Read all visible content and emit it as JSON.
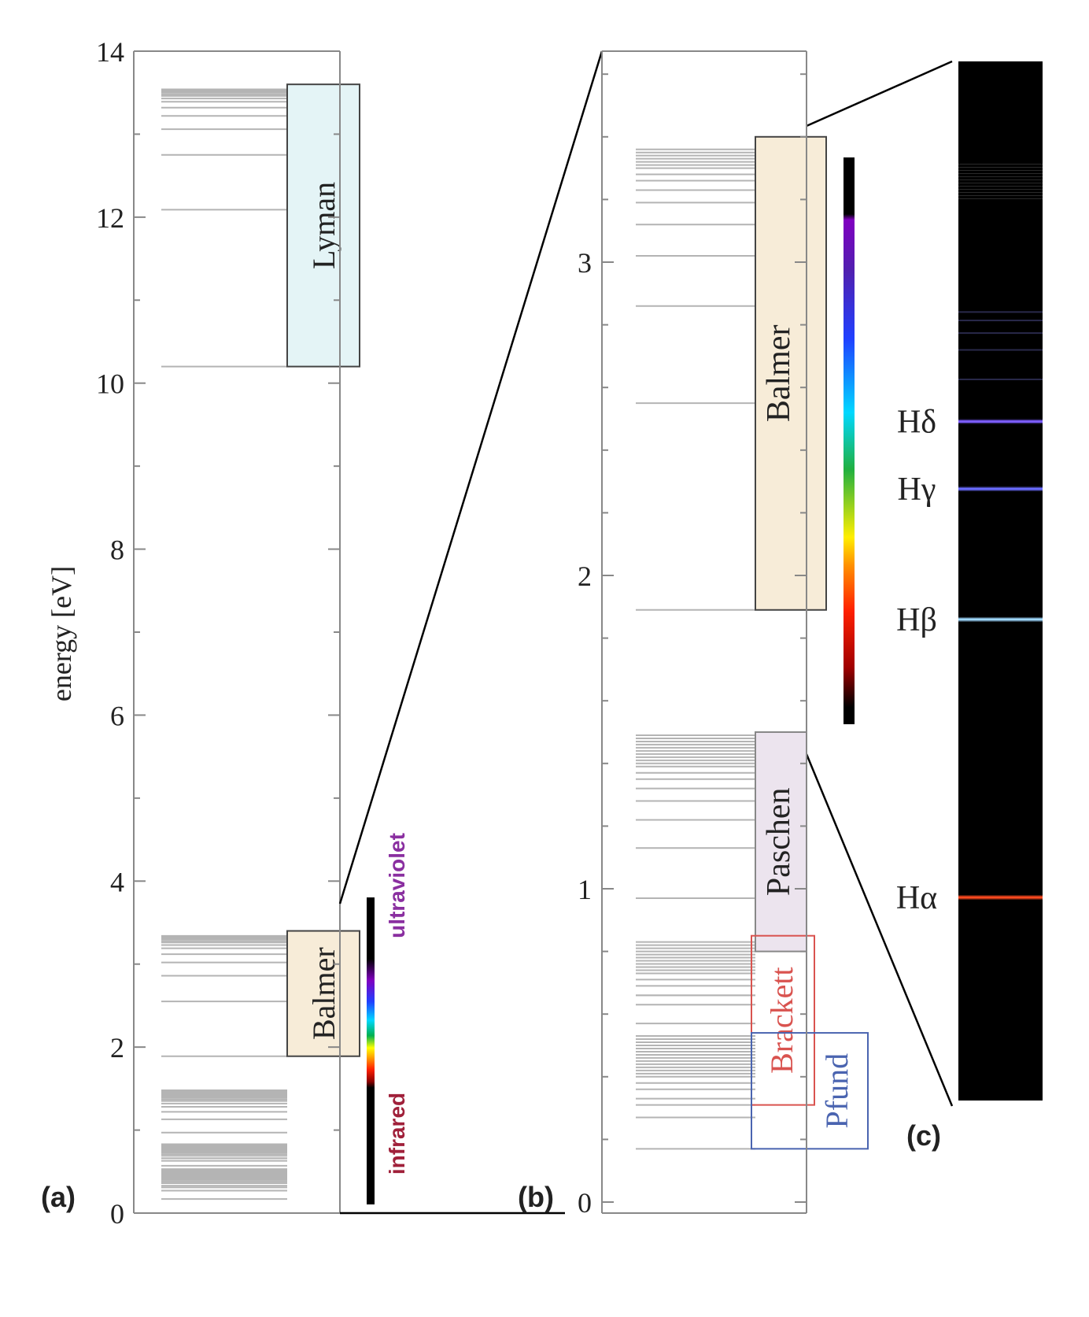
{
  "chart_data": [
    {
      "type": "energy-level-diagram",
      "panel_label": "(a)",
      "ylabel": "energy [eV]",
      "ylim": [
        0,
        14
      ],
      "yticks": [
        "0",
        "2",
        "4",
        "6",
        "8",
        "10",
        "12",
        "14"
      ],
      "series": [
        {
          "name": "Lyman",
          "energies_eV": [
            10.2,
            12.09,
            12.75,
            13.06,
            13.22,
            13.32,
            13.39,
            13.43,
            13.46,
            13.48,
            13.5,
            13.51,
            13.52,
            13.53,
            13.54
          ],
          "box_range_eV": [
            10.2,
            13.6
          ],
          "color": "#e4f4f6"
        },
        {
          "name": "Balmer",
          "energies_eV": [
            1.89,
            2.55,
            2.86,
            3.02,
            3.12,
            3.19,
            3.23,
            3.26,
            3.28,
            3.3,
            3.31,
            3.32,
            3.33,
            3.34
          ],
          "box_range_eV": [
            1.89,
            3.4
          ],
          "color": "#f7ecd8"
        },
        {
          "name": "Paschen",
          "energies_eV": [
            0.66,
            0.97,
            1.13,
            1.22,
            1.28,
            1.32,
            1.35,
            1.37,
            1.39,
            1.4,
            1.41,
            1.42,
            1.43,
            1.44,
            1.45,
            1.46,
            1.47,
            1.48
          ]
        },
        {
          "name": "Brackett",
          "energies_eV": [
            0.31,
            0.47,
            0.57,
            0.63,
            0.66,
            0.69,
            0.71,
            0.73,
            0.74,
            0.75,
            0.76,
            0.77,
            0.78,
            0.79,
            0.8,
            0.81,
            0.82,
            0.83
          ]
        },
        {
          "name": "Pfund",
          "energies_eV": [
            0.17,
            0.27,
            0.33,
            0.36,
            0.38,
            0.4,
            0.41,
            0.42,
            0.43,
            0.44,
            0.45,
            0.46,
            0.47,
            0.48,
            0.49,
            0.5,
            0.51,
            0.52,
            0.53
          ]
        }
      ],
      "spectrum_bar": {
        "range_eV": [
          0.2,
          4.0
        ],
        "visible_range_eV": [
          1.65,
          3.26
        ],
        "labels": [
          "ultraviolet",
          "infrared"
        ]
      }
    },
    {
      "type": "energy-level-diagram",
      "panel_label": "(b)",
      "ylim": [
        0,
        3.75
      ],
      "yticks": [
        "0",
        "1",
        "2",
        "3"
      ],
      "series": [
        {
          "name": "Balmer",
          "energies_eV": [
            1.89,
            2.55,
            2.86,
            3.02,
            3.12,
            3.19,
            3.23,
            3.26,
            3.28,
            3.3,
            3.31,
            3.32,
            3.33,
            3.34,
            3.35,
            3.36
          ],
          "box_range_eV": [
            1.89,
            3.4
          ],
          "color": "#f7ecd8"
        },
        {
          "name": "Paschen",
          "energies_eV": [
            0.66,
            0.97,
            1.13,
            1.22,
            1.28,
            1.32,
            1.35,
            1.37,
            1.39,
            1.4,
            1.41,
            1.42,
            1.43,
            1.44,
            1.45,
            1.46,
            1.47,
            1.48,
            1.49
          ],
          "box_range_eV": [
            0.8,
            1.5
          ],
          "color": "#ece4ee"
        },
        {
          "name": "Brackett",
          "energies_eV": [
            0.31,
            0.47,
            0.57,
            0.63,
            0.66,
            0.69,
            0.71,
            0.73,
            0.74,
            0.75,
            0.76,
            0.77,
            0.78,
            0.79,
            0.8,
            0.81,
            0.82,
            0.83
          ],
          "box_range_eV": [
            0.31,
            0.85
          ],
          "color": "#d9534f"
        },
        {
          "name": "Pfund",
          "energies_eV": [
            0.17,
            0.27,
            0.33,
            0.36,
            0.38,
            0.4,
            0.41,
            0.42,
            0.43,
            0.44,
            0.45,
            0.46,
            0.47,
            0.48,
            0.49,
            0.5,
            0.51,
            0.52,
            0.53
          ],
          "box_range_eV": [
            0.17,
            0.54
          ],
          "color": "#4a64b0"
        }
      ],
      "spectrum_bar": {
        "range_eV": [
          1.6,
          3.4
        ],
        "visible_range_eV": [
          1.65,
          3.26
        ]
      }
    },
    {
      "type": "emission-spectrum",
      "panel_label": "(c)",
      "lines": [
        {
          "name": "Hα",
          "energy_eV": 1.89,
          "color": "#ff4a1f"
        },
        {
          "name": "Hβ",
          "energy_eV": 2.55,
          "color": "#9fd8ff"
        },
        {
          "name": "Hγ",
          "energy_eV": 2.86,
          "color": "#6a6cff"
        },
        {
          "name": "Hδ",
          "energy_eV": 3.02,
          "color": "#7b5cff"
        }
      ],
      "faint_lines_eV": [
        3.12,
        3.19,
        3.23,
        3.26,
        3.28
      ],
      "background": "#000000"
    }
  ]
}
